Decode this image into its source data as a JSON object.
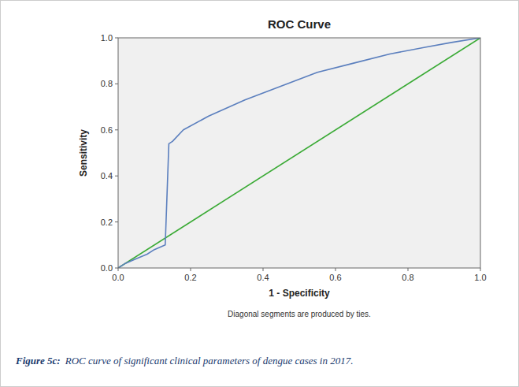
{
  "chart_data": {
    "type": "line",
    "title": "ROC Curve",
    "subtitle": "Diagonal segments are produced by ties.",
    "x_label": "1 - Specificity",
    "y_label": "Sensitivity",
    "annotations": [
      "Figure 5c:",
      "ROC curve of significant clinical parameters of dengue cases in 2017."
    ],
    "series": [
      {
        "color": "#3aaa35",
        "x": [
          0.0,
          1.0
        ],
        "values": [
          0.0,
          1.0
        ]
      },
      {
        "color": "#5b7fbe",
        "x": [
          0.0,
          0.02,
          0.05,
          0.08,
          0.1,
          0.13,
          0.14,
          0.15,
          0.18,
          0.25,
          0.35,
          0.45,
          0.55,
          0.65,
          0.75,
          0.85,
          0.92,
          1.0
        ],
        "values": [
          0.0,
          0.02,
          0.04,
          0.06,
          0.08,
          0.1,
          0.54,
          0.55,
          0.6,
          0.66,
          0.73,
          0.79,
          0.85,
          0.89,
          0.93,
          0.96,
          0.98,
          1.0
        ]
      }
    ],
    "xlim": [
      0.0,
      1.0
    ],
    "ylim": [
      0.0,
      1.0
    ],
    "xticks": [
      {
        "value": 0.0,
        "label": "0.0"
      },
      0.2,
      0.4,
      0.6,
      0.8,
      {
        "value": 1.0,
        "label": "1.0"
      }
    ],
    "yticks": [
      {
        "value": 0.0,
        "label": "0.0"
      },
      0.2,
      0.4,
      0.6,
      0.8,
      {
        "value": 1.0,
        "label": "1.0"
      }
    ],
    "grid": false
  }
}
